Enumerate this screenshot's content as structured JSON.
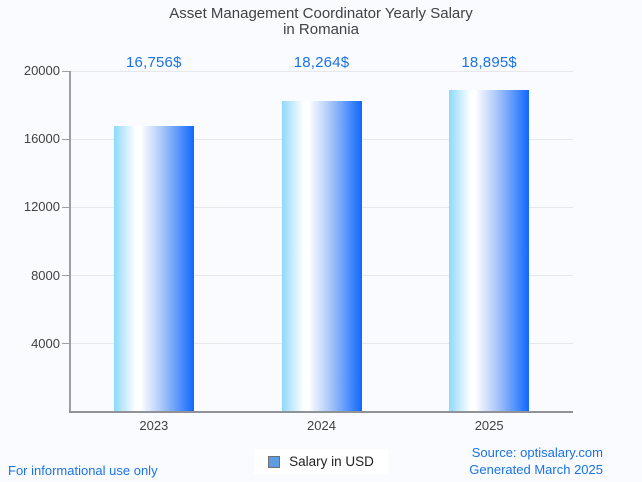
{
  "page": {
    "background": "#fafbfe"
  },
  "chart_data": {
    "type": "bar",
    "title": "Asset Management Coordinator Yearly Salary in Romania",
    "title_lines": [
      "Asset Management Coordinator Yearly Salary",
      "in Romania"
    ],
    "categories": [
      "2023",
      "2024",
      "2025"
    ],
    "series": [
      {
        "name": "Salary in USD",
        "values": [
          16756,
          18264,
          18895
        ]
      }
    ],
    "value_labels": [
      "16,756$",
      "18,264$",
      "18,895$"
    ],
    "ylim": [
      0,
      20000
    ],
    "yticks": [
      4000,
      8000,
      12000,
      16000,
      20000
    ],
    "ytick_labels": [
      "4000",
      "8000",
      "12000",
      "16000",
      "20000"
    ],
    "grid": true,
    "legend_position": "bottom",
    "colors": {
      "annotation_blue": "#1a73e8",
      "bar_gradient_left": "#8ed9fb",
      "bar_gradient_mid": "#ffffff",
      "bar_gradient_soft": "#a9c7fa",
      "bar_gradient_right": "#1168fd",
      "legend_swatch": "#5d9be2",
      "axis_text": "#424242",
      "title_text": "#3f4246",
      "gridline": "#e6e8ea",
      "axis_line": "#9aa0a6"
    }
  },
  "legend": {
    "label": "Salary in USD"
  },
  "footer": {
    "disclaimer": "For informational use only",
    "source": "Source: optisalary.com",
    "generated": "Generated March 2025",
    "link_color": "#1a73e8"
  }
}
